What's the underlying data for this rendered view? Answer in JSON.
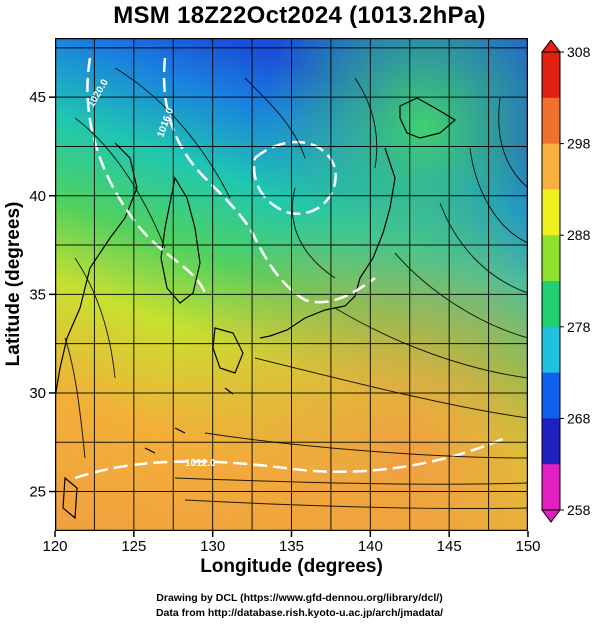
{
  "title": "MSM 18Z22Oct2024 (1013.2hPa)",
  "x_axis": {
    "label": "Longitude (degrees)",
    "range": [
      120,
      150
    ],
    "ticks": [
      120,
      125,
      130,
      135,
      140,
      145,
      150
    ]
  },
  "y_axis": {
    "label": "Latitude  (degrees)",
    "range": [
      23,
      48
    ],
    "ticks": [
      25,
      30,
      35,
      40,
      45
    ]
  },
  "colorbar": {
    "range": [
      258,
      308
    ],
    "ticks": [
      258,
      268,
      278,
      288,
      298,
      308
    ],
    "colors": [
      "#e020c0",
      "#2020c0",
      "#1060f0",
      "#20c0e0",
      "#20d070",
      "#90e030",
      "#f0f020",
      "#f8b040",
      "#f07030",
      "#e02010"
    ]
  },
  "contours": {
    "color": "#ffffff",
    "labels": [
      "1020.0",
      "1016.0",
      "1012.0"
    ]
  },
  "credits": {
    "line1": "Drawing by DCL (https://www.gfd-dennou.org/library/dcl/)",
    "line2": "Data from http://database.rish.kyoto-u.ac.jp/arch/jmadata/"
  }
}
